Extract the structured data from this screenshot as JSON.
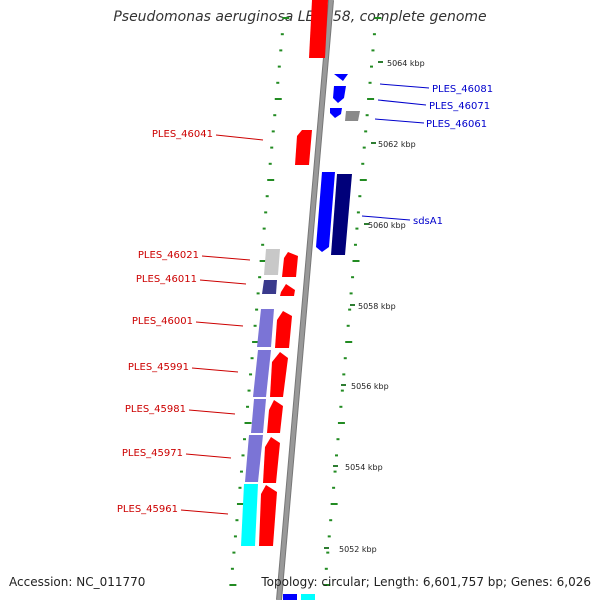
{
  "title": "Pseudomonas aeruginosa LESB58, complete genome",
  "footer": {
    "accession": "Accession: NC_011770",
    "summary": "Topology: circular; Length: 6,601,757 bp; Genes: 6,026"
  },
  "colors": {
    "backbone": "#999999",
    "backbone_edge": "#777777",
    "forward_cds": "#ff0000",
    "reverse_cds": "#0000ff",
    "gene_purple": "#7b74d6",
    "gene_navy": "#00007a",
    "gene_cyan": "#00ffff",
    "gene_gray": "#8a8a8a",
    "gene_light_gray": "#c8c8c8",
    "gc_ticks": "#228b22",
    "label_left": "#cc0000",
    "label_right": "#0000cc"
  },
  "ruler_ticks": [
    {
      "label": "5064 kbp"
    },
    {
      "label": "5062 kbp"
    },
    {
      "label": "5060 kbp"
    },
    {
      "label": "5058 kbp"
    },
    {
      "label": "5056 kbp"
    },
    {
      "label": "5054 kbp"
    },
    {
      "label": "5052 kbp"
    }
  ],
  "gene_labels_left": [
    {
      "name": "PLES_46041"
    },
    {
      "name": "PLES_46021"
    },
    {
      "name": "PLES_46011"
    },
    {
      "name": "PLES_46001"
    },
    {
      "name": "PLES_45991"
    },
    {
      "name": "PLES_45981"
    },
    {
      "name": "PLES_45971"
    },
    {
      "name": "PLES_45961"
    }
  ],
  "gene_labels_right": [
    {
      "name": "PLES_46081"
    },
    {
      "name": "PLES_46071"
    },
    {
      "name": "PLES_46061"
    },
    {
      "name": "sdsA1"
    }
  ]
}
